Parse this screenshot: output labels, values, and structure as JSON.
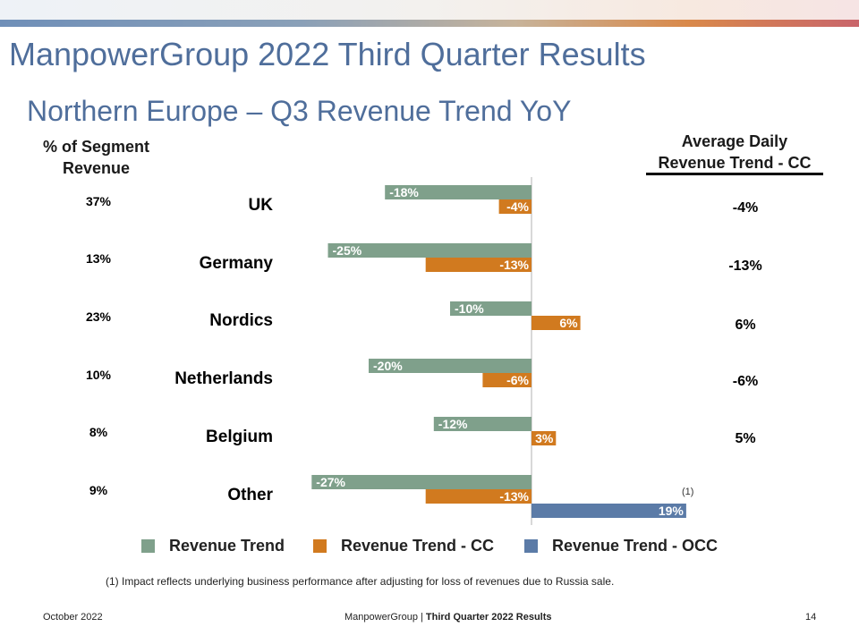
{
  "title": "ManpowerGroup 2022 Third Quarter Results",
  "subtitle": "Northern Europe – Q3 Revenue Trend YoY",
  "left_header": "% of Segment Revenue",
  "right_header_line1": "Average Daily",
  "right_header_line2": "Revenue Trend - CC",
  "segment_share": [
    "37%",
    "13%",
    "23%",
    "10%",
    "8%",
    "9%"
  ],
  "average_daily_cc": [
    "-4%",
    "-13%",
    "6%",
    "-6%",
    "5%",
    ""
  ],
  "occ_note_mark": "(1)",
  "footnote": "(1)  Impact reflects underlying business performance after adjusting for loss of revenues due to Russia sale.",
  "footer": {
    "date": "October 2022",
    "center_prefix": "ManpowerGroup  | ",
    "center_bold": "Third Quarter 2022 Results",
    "page": "14"
  },
  "chart_data": {
    "type": "bar",
    "orientation": "horizontal",
    "categories": [
      "UK",
      "Germany",
      "Nordics",
      "Netherlands",
      "Belgium",
      "Other"
    ],
    "series": [
      {
        "name": "Revenue Trend",
        "color": "#7fa08b",
        "values": [
          -18,
          -25,
          -10,
          -20,
          -12,
          -27
        ],
        "labels": [
          "-18%",
          "-25%",
          "-10%",
          "-20%",
          "-12%",
          "-27%"
        ]
      },
      {
        "name": "Revenue Trend - CC",
        "color": "#d17a1f",
        "values": [
          -4,
          -13,
          6,
          -6,
          3,
          -13
        ],
        "labels": [
          "-4%",
          "-13%",
          "6%",
          "-6%",
          "3%",
          "-13%"
        ]
      },
      {
        "name": "Revenue Trend - OCC",
        "color": "#5b7ba7",
        "values": [
          null,
          null,
          null,
          null,
          null,
          19
        ],
        "labels": [
          "",
          "",
          "",
          "",
          "",
          "19%"
        ]
      }
    ],
    "legend_position": "bottom",
    "grid": false
  }
}
